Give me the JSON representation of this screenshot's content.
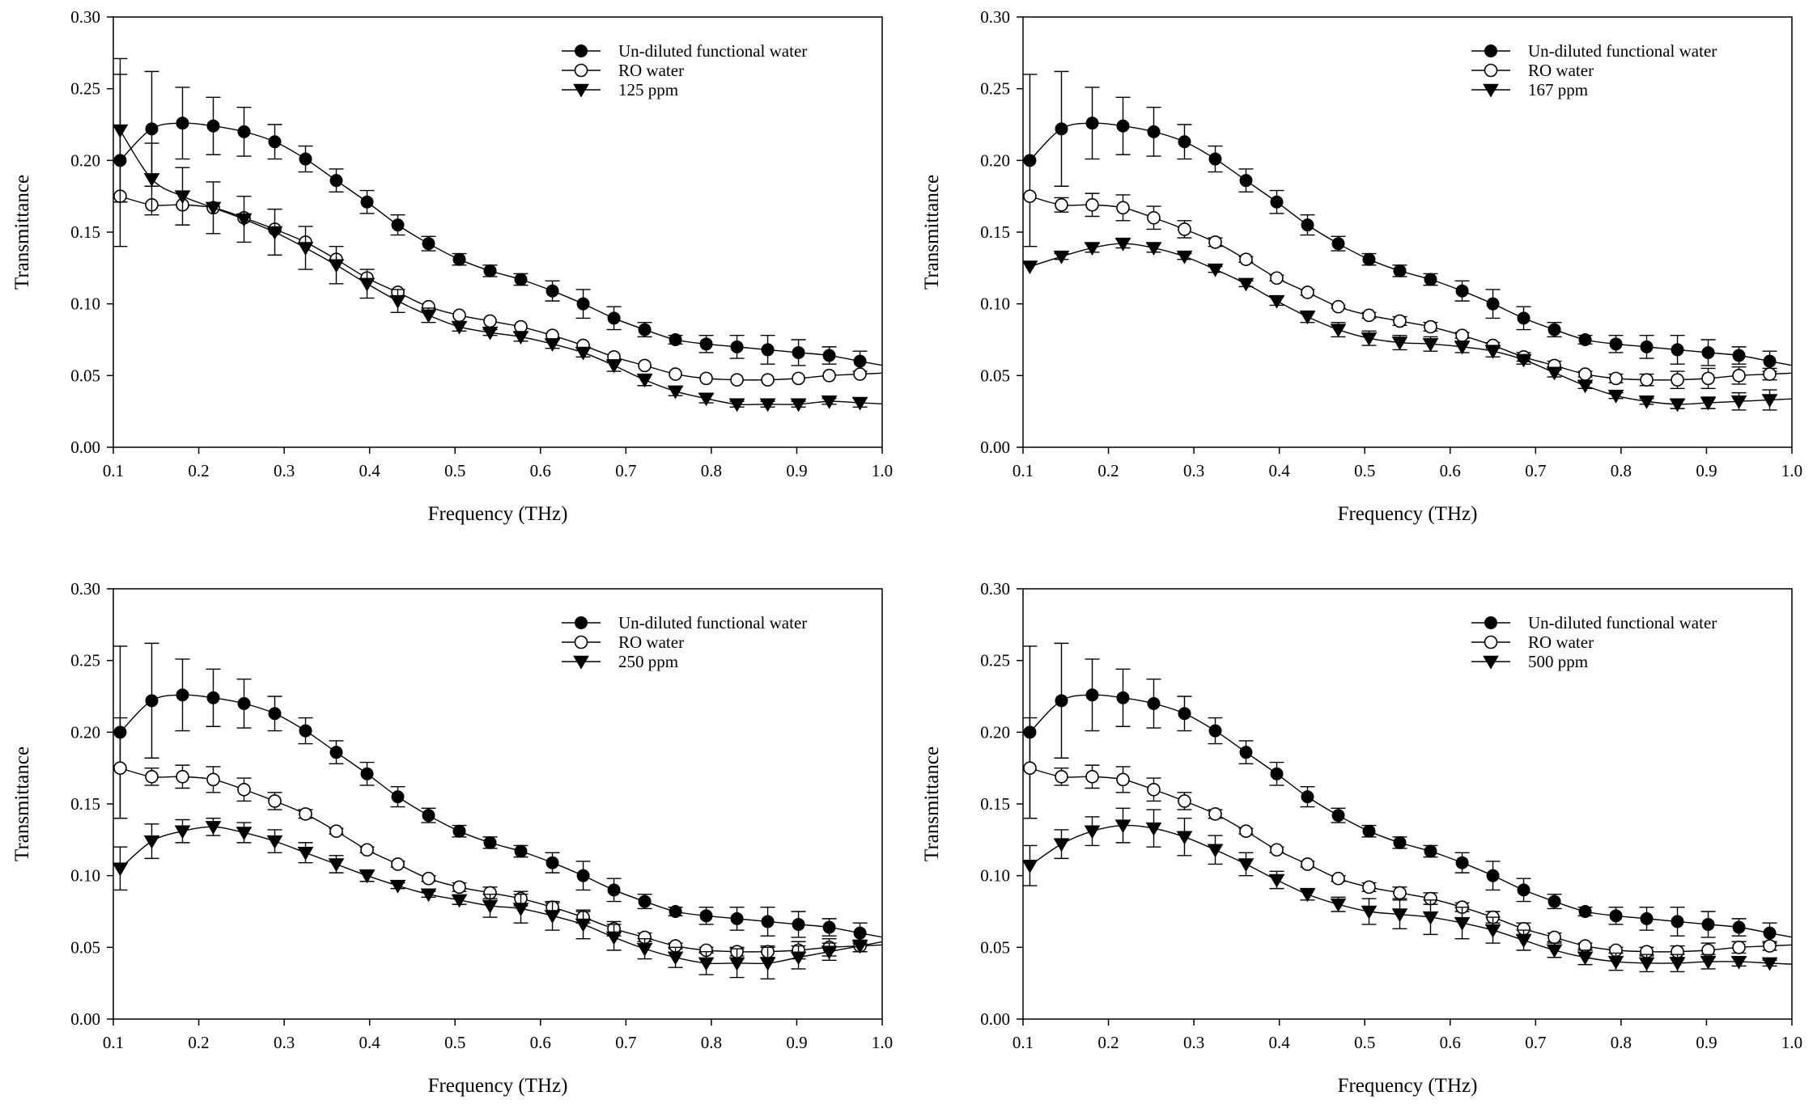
{
  "chart_data": [
    {
      "type": "line",
      "xlabel": "Frequency (THz)",
      "ylabel": "Transmittance",
      "xlim": [
        0.1,
        1.0
      ],
      "ylim": [
        0.0,
        0.3
      ],
      "x_ticks": [
        "0.1",
        "0.2",
        "0.3",
        "0.4",
        "0.5",
        "0.6",
        "0.7",
        "0.8",
        "0.9",
        "1.0"
      ],
      "y_ticks": [
        "0.00",
        "0.05",
        "0.10",
        "0.15",
        "0.20",
        "0.25",
        "0.30"
      ],
      "grid": false,
      "legend_position": "top-right",
      "x": [
        0.108,
        0.145,
        0.181,
        0.217,
        0.253,
        0.289,
        0.325,
        0.361,
        0.397,
        0.433,
        0.469,
        0.505,
        0.541,
        0.577,
        0.614,
        0.65,
        0.686,
        0.722,
        0.758,
        0.794,
        0.83,
        0.866,
        0.902,
        0.938,
        0.974
      ],
      "series": [
        {
          "name": "Un-diluted functional water",
          "marker": "filled-circle",
          "values": [
            0.2,
            0.222,
            0.226,
            0.224,
            0.22,
            0.213,
            0.201,
            0.186,
            0.171,
            0.155,
            0.142,
            0.131,
            0.123,
            0.117,
            0.109,
            0.1,
            0.09,
            0.082,
            0.075,
            0.072,
            0.07,
            0.068,
            0.066,
            0.064,
            0.06
          ],
          "errors": [
            0.06,
            0.04,
            0.025,
            0.02,
            0.017,
            0.012,
            0.009,
            0.008,
            0.008,
            0.007,
            0.005,
            0.004,
            0.004,
            0.004,
            0.007,
            0.01,
            0.008,
            0.005,
            0.003,
            0.006,
            0.008,
            0.01,
            0.009,
            0.006,
            0.007
          ]
        },
        {
          "name": "RO water",
          "marker": "open-circle",
          "values": [
            0.175,
            0.169,
            0.169,
            0.167,
            0.16,
            0.152,
            0.143,
            0.131,
            0.118,
            0.108,
            0.098,
            0.092,
            0.088,
            0.084,
            0.078,
            0.071,
            0.063,
            0.057,
            0.051,
            0.048,
            0.047,
            0.047,
            0.048,
            0.05,
            0.051
          ]
        },
        {
          "name": "125 ppm",
          "marker": "filled-triangle-down",
          "values": [
            0.221,
            0.187,
            0.175,
            0.167,
            0.159,
            0.15,
            0.139,
            0.127,
            0.114,
            0.102,
            0.092,
            0.084,
            0.08,
            0.077,
            0.072,
            0.066,
            0.057,
            0.047,
            0.039,
            0.034,
            0.03,
            0.03,
            0.03,
            0.032,
            0.031
          ],
          "errors": [
            0.05,
            0.025,
            0.02,
            0.018,
            0.016,
            0.016,
            0.015,
            0.013,
            0.01,
            0.008,
            0.005,
            0.003,
            0.002,
            0.003,
            0.003,
            0.003,
            0.004,
            0.004,
            0.003,
            0.003,
            0.002,
            0.002,
            0.002,
            0.002,
            0.003
          ]
        }
      ]
    },
    {
      "type": "line",
      "xlabel": "Frequency (THz)",
      "ylabel": "Transmittance",
      "xlim": [
        0.1,
        1.0
      ],
      "ylim": [
        0.0,
        0.3
      ],
      "x_ticks": [
        "0.1",
        "0.2",
        "0.3",
        "0.4",
        "0.5",
        "0.6",
        "0.7",
        "0.8",
        "0.9",
        "1.0"
      ],
      "y_ticks": [
        "0.00",
        "0.05",
        "0.10",
        "0.15",
        "0.20",
        "0.25",
        "0.30"
      ],
      "grid": false,
      "legend_position": "top-right",
      "x": [
        0.108,
        0.145,
        0.181,
        0.217,
        0.253,
        0.289,
        0.325,
        0.361,
        0.397,
        0.433,
        0.469,
        0.505,
        0.541,
        0.577,
        0.614,
        0.65,
        0.686,
        0.722,
        0.758,
        0.794,
        0.83,
        0.866,
        0.902,
        0.938,
        0.974
      ],
      "series": [
        {
          "name": "Un-diluted functional water",
          "marker": "filled-circle",
          "values": [
            0.2,
            0.222,
            0.226,
            0.224,
            0.22,
            0.213,
            0.201,
            0.186,
            0.171,
            0.155,
            0.142,
            0.131,
            0.123,
            0.117,
            0.109,
            0.1,
            0.09,
            0.082,
            0.075,
            0.072,
            0.07,
            0.068,
            0.066,
            0.064,
            0.06
          ],
          "errors": [
            0.06,
            0.04,
            0.025,
            0.02,
            0.017,
            0.012,
            0.009,
            0.008,
            0.008,
            0.007,
            0.005,
            0.004,
            0.004,
            0.004,
            0.007,
            0.01,
            0.008,
            0.005,
            0.003,
            0.006,
            0.008,
            0.01,
            0.009,
            0.006,
            0.007
          ]
        },
        {
          "name": "RO water",
          "marker": "open-circle",
          "values": [
            0.175,
            0.169,
            0.169,
            0.167,
            0.16,
            0.152,
            0.143,
            0.131,
            0.118,
            0.108,
            0.098,
            0.092,
            0.088,
            0.084,
            0.078,
            0.071,
            0.063,
            0.057,
            0.051,
            0.048,
            0.047,
            0.047,
            0.048,
            0.05,
            0.051
          ],
          "errors": [
            0.0,
            0.005,
            0.008,
            0.009,
            0.008,
            0.006,
            0.003,
            0.002,
            0.002,
            0.002,
            0.001,
            0.002,
            0.003,
            0.003,
            0.002,
            0.002,
            0.003,
            0.003,
            0.002,
            0.003,
            0.004,
            0.006,
            0.007,
            0.006,
            0.004
          ]
        },
        {
          "name": "167 ppm",
          "marker": "filled-triangle-down",
          "values": [
            0.126,
            0.133,
            0.139,
            0.142,
            0.139,
            0.133,
            0.124,
            0.114,
            0.102,
            0.091,
            0.082,
            0.076,
            0.073,
            0.072,
            0.07,
            0.067,
            0.061,
            0.052,
            0.043,
            0.036,
            0.032,
            0.03,
            0.031,
            0.032,
            0.033
          ],
          "errors": [
            0.0,
            0.002,
            0.003,
            0.003,
            0.003,
            0.002,
            0.002,
            0.002,
            0.003,
            0.004,
            0.005,
            0.005,
            0.005,
            0.005,
            0.004,
            0.004,
            0.003,
            0.003,
            0.002,
            0.002,
            0.002,
            0.003,
            0.004,
            0.006,
            0.007
          ]
        }
      ]
    },
    {
      "type": "line",
      "xlabel": "Frequency (THz)",
      "ylabel": "Transmittance",
      "xlim": [
        0.1,
        1.0
      ],
      "ylim": [
        0.0,
        0.3
      ],
      "x_ticks": [
        "0.1",
        "0.2",
        "0.3",
        "0.4",
        "0.5",
        "0.6",
        "0.7",
        "0.8",
        "0.9",
        "1.0"
      ],
      "y_ticks": [
        "0.00",
        "0.05",
        "0.10",
        "0.15",
        "0.20",
        "0.25",
        "0.30"
      ],
      "grid": false,
      "legend_position": "top-right",
      "x": [
        0.108,
        0.145,
        0.181,
        0.217,
        0.253,
        0.289,
        0.325,
        0.361,
        0.397,
        0.433,
        0.469,
        0.505,
        0.541,
        0.577,
        0.614,
        0.65,
        0.686,
        0.722,
        0.758,
        0.794,
        0.83,
        0.866,
        0.902,
        0.938,
        0.974
      ],
      "series": [
        {
          "name": "Un-diluted functional water",
          "marker": "filled-circle",
          "values": [
            0.2,
            0.222,
            0.226,
            0.224,
            0.22,
            0.213,
            0.201,
            0.186,
            0.171,
            0.155,
            0.142,
            0.131,
            0.123,
            0.117,
            0.109,
            0.1,
            0.09,
            0.082,
            0.075,
            0.072,
            0.07,
            0.068,
            0.066,
            0.064,
            0.06
          ],
          "errors": [
            0.06,
            0.04,
            0.025,
            0.02,
            0.017,
            0.012,
            0.009,
            0.008,
            0.008,
            0.007,
            0.005,
            0.004,
            0.004,
            0.004,
            0.007,
            0.01,
            0.008,
            0.005,
            0.003,
            0.006,
            0.008,
            0.01,
            0.009,
            0.006,
            0.007
          ]
        },
        {
          "name": "RO water",
          "marker": "open-circle",
          "values": [
            0.175,
            0.169,
            0.169,
            0.167,
            0.16,
            0.152,
            0.143,
            0.131,
            0.118,
            0.108,
            0.098,
            0.092,
            0.088,
            0.084,
            0.078,
            0.071,
            0.063,
            0.057,
            0.051,
            0.048,
            0.047,
            0.047,
            0.048,
            0.05,
            0.051
          ],
          "errors": [
            0.035,
            0.006,
            0.008,
            0.009,
            0.008,
            0.006,
            0.003,
            0.002,
            0.002,
            0.002,
            0.002,
            0.003,
            0.004,
            0.005,
            0.003,
            0.004,
            0.005,
            0.003,
            0.002,
            0.002,
            0.003,
            0.004,
            0.006,
            0.006,
            0.004
          ]
        },
        {
          "name": "250 ppm",
          "marker": "filled-triangle-down",
          "values": [
            0.105,
            0.124,
            0.131,
            0.134,
            0.13,
            0.124,
            0.116,
            0.108,
            0.1,
            0.093,
            0.087,
            0.083,
            0.079,
            0.077,
            0.072,
            0.066,
            0.057,
            0.049,
            0.043,
            0.039,
            0.039,
            0.039,
            0.043,
            0.047,
            0.051
          ],
          "errors": [
            0.015,
            0.012,
            0.008,
            0.006,
            0.007,
            0.008,
            0.007,
            0.006,
            0.004,
            0.002,
            0.002,
            0.003,
            0.008,
            0.01,
            0.01,
            0.01,
            0.009,
            0.007,
            0.007,
            0.008,
            0.01,
            0.011,
            0.008,
            0.006,
            0.004
          ]
        }
      ]
    },
    {
      "type": "line",
      "xlabel": "Frequency (THz)",
      "ylabel": "Transmittance",
      "xlim": [
        0.1,
        1.0
      ],
      "ylim": [
        0.0,
        0.3
      ],
      "x_ticks": [
        "0.1",
        "0.2",
        "0.3",
        "0.4",
        "0.5",
        "0.6",
        "0.7",
        "0.8",
        "0.9",
        "1.0"
      ],
      "y_ticks": [
        "0.00",
        "0.05",
        "0.10",
        "0.15",
        "0.20",
        "0.25",
        "0.30"
      ],
      "grid": false,
      "legend_position": "top-right",
      "x": [
        0.108,
        0.145,
        0.181,
        0.217,
        0.253,
        0.289,
        0.325,
        0.361,
        0.397,
        0.433,
        0.469,
        0.505,
        0.541,
        0.577,
        0.614,
        0.65,
        0.686,
        0.722,
        0.758,
        0.794,
        0.83,
        0.866,
        0.902,
        0.938,
        0.974
      ],
      "series": [
        {
          "name": "Un-diluted functional water",
          "marker": "filled-circle",
          "values": [
            0.2,
            0.222,
            0.226,
            0.224,
            0.22,
            0.213,
            0.201,
            0.186,
            0.171,
            0.155,
            0.142,
            0.131,
            0.123,
            0.117,
            0.109,
            0.1,
            0.09,
            0.082,
            0.075,
            0.072,
            0.07,
            0.068,
            0.066,
            0.064,
            0.06
          ],
          "errors": [
            0.06,
            0.04,
            0.025,
            0.02,
            0.017,
            0.012,
            0.009,
            0.008,
            0.008,
            0.007,
            0.005,
            0.004,
            0.004,
            0.004,
            0.007,
            0.01,
            0.008,
            0.005,
            0.003,
            0.006,
            0.008,
            0.01,
            0.009,
            0.006,
            0.007
          ]
        },
        {
          "name": "RO water",
          "marker": "open-circle",
          "values": [
            0.175,
            0.169,
            0.169,
            0.167,
            0.16,
            0.152,
            0.143,
            0.131,
            0.118,
            0.108,
            0.098,
            0.092,
            0.088,
            0.084,
            0.078,
            0.071,
            0.063,
            0.057,
            0.051,
            0.048,
            0.047,
            0.047,
            0.048,
            0.05,
            0.051
          ],
          "errors": [
            0.035,
            0.006,
            0.008,
            0.009,
            0.008,
            0.006,
            0.003,
            0.002,
            0.002,
            0.002,
            0.002,
            0.003,
            0.004,
            0.004,
            0.003,
            0.004,
            0.004,
            0.003,
            0.002,
            0.002,
            0.003,
            0.004,
            0.005,
            0.004,
            0.003
          ]
        },
        {
          "name": "500 ppm",
          "marker": "filled-triangle-down",
          "values": [
            0.107,
            0.122,
            0.131,
            0.135,
            0.133,
            0.127,
            0.118,
            0.108,
            0.097,
            0.087,
            0.08,
            0.075,
            0.073,
            0.071,
            0.067,
            0.062,
            0.055,
            0.048,
            0.043,
            0.04,
            0.039,
            0.039,
            0.04,
            0.04,
            0.039
          ],
          "errors": [
            0.014,
            0.01,
            0.01,
            0.012,
            0.013,
            0.013,
            0.01,
            0.008,
            0.006,
            0.004,
            0.005,
            0.009,
            0.01,
            0.012,
            0.011,
            0.009,
            0.007,
            0.005,
            0.005,
            0.006,
            0.006,
            0.006,
            0.005,
            0.003,
            0.002
          ]
        }
      ]
    }
  ]
}
